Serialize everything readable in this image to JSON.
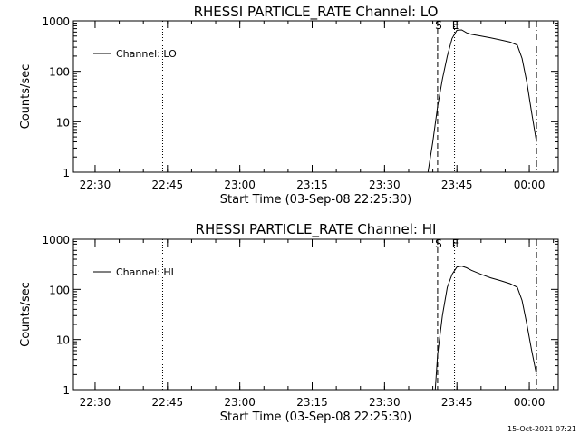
{
  "chart_data": [
    {
      "type": "line",
      "title": "RHESSI PARTICLE_RATE Channel: LO",
      "xlabel": "Start Time (03-Sep-08 22:25:30)",
      "ylabel": "Counts/sec",
      "yscale": "log",
      "xlim": [
        "22:25:30",
        "00:06:00"
      ],
      "ylim": [
        1,
        1000
      ],
      "xticks": [
        "22:30",
        "22:45",
        "23:00",
        "23:15",
        "23:30",
        "23:45",
        "00:00"
      ],
      "yticks": [
        "1",
        "10",
        "100",
        "1000"
      ],
      "legend": {
        "label": "Channel: LO",
        "placement": "top-left"
      },
      "markers": [
        {
          "time": "22:44:00",
          "style": "dotted",
          "label": ""
        },
        {
          "time": "23:41:00",
          "style": "dashed",
          "label": "S"
        },
        {
          "time": "23:44:30",
          "style": "dotted",
          "label": "E"
        },
        {
          "time": "00:01:30",
          "style": "dash-dot",
          "label": ""
        }
      ],
      "series": [
        {
          "name": "Channel: LO",
          "x": [
            "23:39:00",
            "23:40:00",
            "23:41:00",
            "23:42:00",
            "23:43:00",
            "23:44:00",
            "23:45:00",
            "23:46:00",
            "23:47:00",
            "23:48:00",
            "23:50:00",
            "23:52:00",
            "23:54:00",
            "23:56:00",
            "23:57:30",
            "23:58:30",
            "23:59:30",
            "00:00:30",
            "00:01:30"
          ],
          "y": [
            1,
            4,
            20,
            70,
            200,
            450,
            650,
            660,
            580,
            540,
            500,
            460,
            420,
            380,
            330,
            180,
            60,
            15,
            4
          ]
        }
      ]
    },
    {
      "type": "line",
      "title": "RHESSI PARTICLE_RATE Channel: HI",
      "xlabel": "Start Time (03-Sep-08 22:25:30)",
      "ylabel": "Counts/sec",
      "yscale": "log",
      "xlim": [
        "22:25:30",
        "00:06:00"
      ],
      "ylim": [
        1,
        1000
      ],
      "xticks": [
        "22:30",
        "22:45",
        "23:00",
        "23:15",
        "23:30",
        "23:45",
        "00:00"
      ],
      "yticks": [
        "1",
        "10",
        "100",
        "1000"
      ],
      "legend": {
        "label": "Channel: HI",
        "placement": "top-left"
      },
      "markers": [
        {
          "time": "22:44:00",
          "style": "dotted",
          "label": ""
        },
        {
          "time": "23:41:00",
          "style": "dashed",
          "label": "S"
        },
        {
          "time": "23:44:30",
          "style": "dotted",
          "label": "E"
        },
        {
          "time": "00:01:30",
          "style": "dash-dot",
          "label": ""
        }
      ],
      "series": [
        {
          "name": "Channel: HI",
          "x": [
            "23:40:30",
            "23:41:00",
            "23:42:00",
            "23:43:00",
            "23:44:00",
            "23:45:00",
            "23:46:00",
            "23:47:00",
            "23:48:00",
            "23:50:00",
            "23:52:00",
            "23:54:00",
            "23:56:00",
            "23:57:30",
            "23:58:30",
            "23:59:30",
            "00:00:30",
            "00:01:30"
          ],
          "y": [
            1,
            5,
            30,
            110,
            200,
            280,
            290,
            270,
            240,
            200,
            170,
            150,
            130,
            110,
            60,
            20,
            6,
            2
          ]
        }
      ]
    }
  ],
  "timestamp": "15-Oct-2021 07:21"
}
